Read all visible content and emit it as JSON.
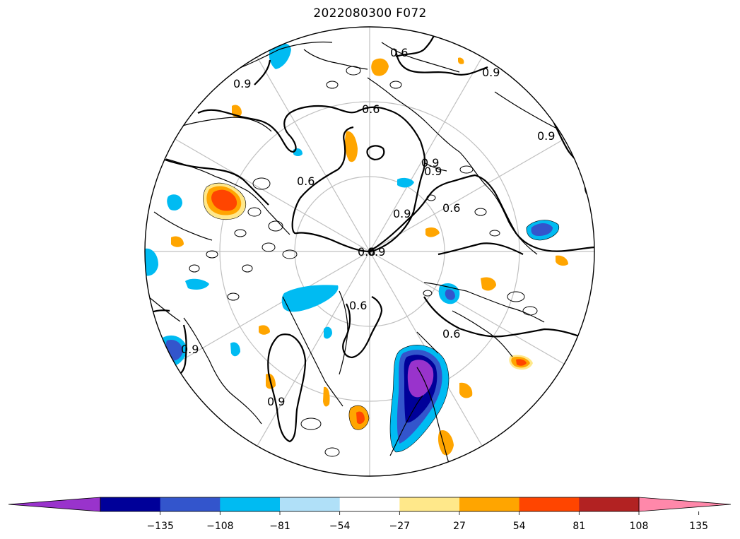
{
  "title": "2022080300 F072",
  "colorbar": {
    "colors": [
      "#9933cc",
      "#000099",
      "#3355cc",
      "#00bbf2",
      "#b0e0f8",
      "#ffffff",
      "#ffe88a",
      "#ffa500",
      "#ff4500",
      "#b22222",
      "#ff88aa"
    ],
    "extend": "both",
    "ticks": [
      "−135",
      "−108",
      "−81",
      "−54",
      "−27",
      "27",
      "54",
      "81",
      "108",
      "135"
    ]
  },
  "contour_labels": [
    "0.9",
    "0.6",
    "0.9",
    "0.9",
    "0.6",
    "0.9",
    "0.6",
    "0.9",
    "0.6",
    "0.6",
    "0.9",
    "0.9",
    "0.6",
    "0.9",
    "0.6",
    "0.9"
  ],
  "map": {
    "projection": "north-polar-stereographic",
    "graticule": "on",
    "land_color": "#000000",
    "contour_color": "#000000"
  }
}
